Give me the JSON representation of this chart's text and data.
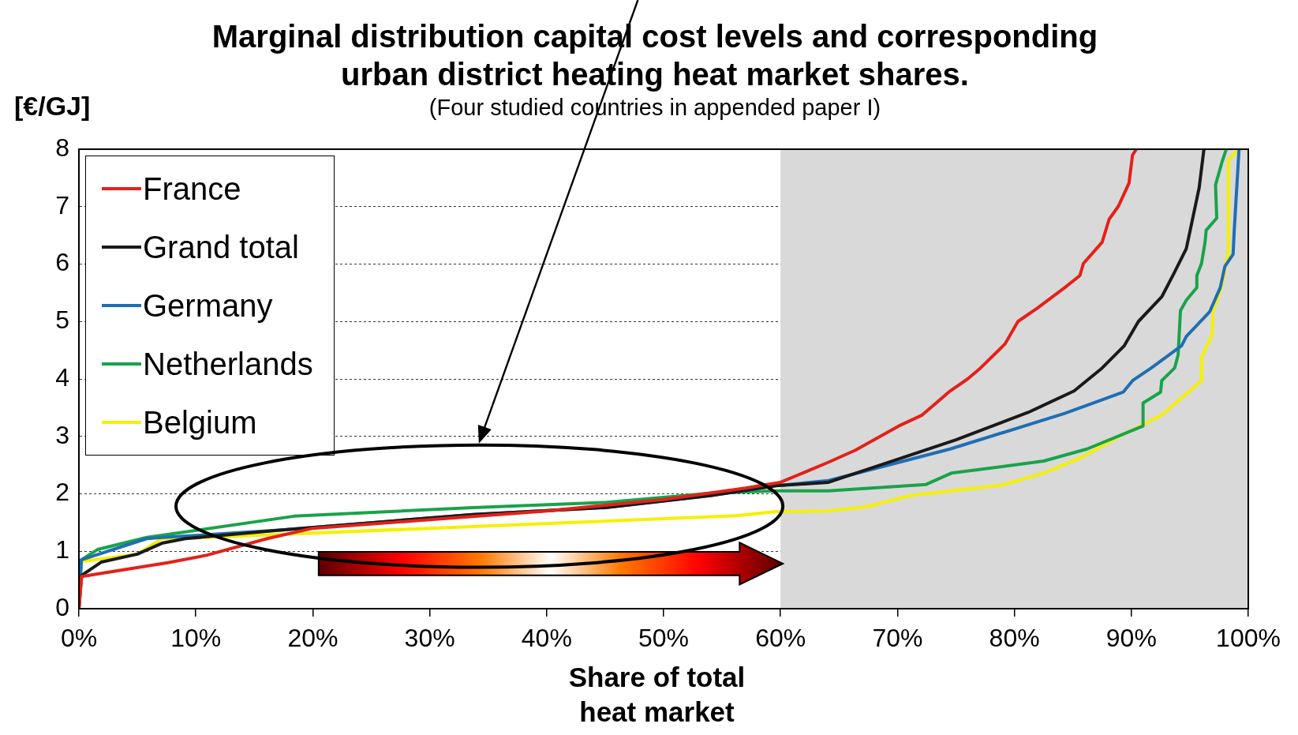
{
  "chart_data": {
    "type": "line",
    "title": "Marginal distribution capital cost levels and corresponding\nurban district heating heat market shares.",
    "subtitle": "(Four studied countries in appended paper I)",
    "ylabel": "[€/GJ]",
    "xlabel": "Share of total\nheat market",
    "xlim": [
      0,
      100
    ],
    "xticks": [
      {
        "value": 0,
        "label": "0%"
      },
      {
        "value": 10,
        "label": "10%"
      },
      {
        "value": 20,
        "label": "20%"
      },
      {
        "value": 30,
        "label": "30%"
      },
      {
        "value": 40,
        "label": "40%"
      },
      {
        "value": 50,
        "label": "50%"
      },
      {
        "value": 60,
        "label": "60%"
      },
      {
        "value": 70,
        "label": "70%"
      },
      {
        "value": 80,
        "label": "80%"
      },
      {
        "value": 90,
        "label": "90%"
      },
      {
        "value": 100,
        "label": "100%"
      }
    ],
    "ylim": [
      0,
      8
    ],
    "yticks": [
      0,
      1,
      2,
      3,
      4,
      5,
      6,
      7,
      8
    ],
    "grid": "y",
    "legend": "top left",
    "marker": "none",
    "line_style": "solid",
    "bands": [
      {
        "axis": "x",
        "from": 60,
        "to": 100,
        "color": "#d9d9d9"
      }
    ],
    "series": [
      {
        "name": "France",
        "color": "#e32119",
        "x": [
          0,
          0.23,
          7.6,
          10.9,
          16.1,
          20,
          30,
          40,
          50,
          57,
          60,
          64.1,
          66.4,
          70.1,
          72.1,
          74.5,
          76.0,
          77.1,
          79.2,
          80.3,
          82.0,
          84.3,
          85.6,
          85.9,
          87.5,
          88.1,
          88.9,
          89.8,
          90.1,
          90.4
        ],
        "values": [
          0,
          0.56,
          0.8,
          0.93,
          1.22,
          1.4,
          1.55,
          1.7,
          1.9,
          2.1,
          2.2,
          2.55,
          2.76,
          3.18,
          3.37,
          3.79,
          4.0,
          4.19,
          4.61,
          5.0,
          5.24,
          5.59,
          5.8,
          6.01,
          6.38,
          6.78,
          7.01,
          7.41,
          7.9,
          7.99
        ]
      },
      {
        "name": "Grand total",
        "color": "#1a1a1a",
        "x": [
          0,
          0.23,
          1.9,
          5.0,
          7.1,
          9.1,
          17.4,
          33.7,
          45,
          54,
          59.6,
          64.1,
          70.3,
          75.0,
          81.2,
          85.1,
          87.5,
          89.4,
          90.6,
          92.6,
          93.7,
          94.7,
          95.2,
          95.8,
          96.2
        ],
        "values": [
          0,
          0.58,
          0.81,
          0.95,
          1.14,
          1.22,
          1.37,
          1.64,
          1.76,
          1.97,
          2.14,
          2.2,
          2.62,
          2.94,
          3.42,
          3.79,
          4.19,
          4.58,
          5.0,
          5.43,
          5.86,
          6.27,
          6.75,
          7.33,
          7.99
        ]
      },
      {
        "name": "Germany",
        "color": "#1f6eb4",
        "x": [
          0,
          0.2,
          5.8,
          7.1,
          17.4,
          33.7,
          45,
          54,
          59.6,
          64.1,
          74.5,
          84.3,
          89.3,
          90.1,
          91.7,
          94.3,
          94.7,
          96.7,
          97.6,
          98.0,
          98.7,
          98.8,
          99.2
        ],
        "values": [
          0,
          0.85,
          1.22,
          1.24,
          1.37,
          1.64,
          1.76,
          1.97,
          2.14,
          2.23,
          2.78,
          3.4,
          3.77,
          3.97,
          4.19,
          4.58,
          4.74,
          5.17,
          5.59,
          5.96,
          6.17,
          6.59,
          7.97
        ]
      },
      {
        "name": "Netherlands",
        "color": "#19a34a",
        "x": [
          0,
          0.2,
          1.6,
          5.8,
          18.4,
          33.7,
          45,
          54,
          59.6,
          64.1,
          72.4,
          74.6,
          82.5,
          86.2,
          91.0,
          91.0,
          92.5,
          92.6,
          93.7,
          94.0,
          94.2,
          94.7,
          95.6,
          95.6,
          96.0,
          96.3,
          96.4,
          97.3,
          97.2,
          97.8,
          98.1
        ],
        "values": [
          0,
          0.85,
          1.03,
          1.24,
          1.61,
          1.76,
          1.85,
          2.01,
          2.05,
          2.05,
          2.16,
          2.36,
          2.57,
          2.78,
          3.18,
          3.58,
          3.77,
          3.97,
          4.19,
          4.42,
          5.19,
          5.37,
          5.59,
          5.8,
          6.01,
          6.38,
          6.59,
          6.8,
          7.38,
          7.81,
          7.99
        ]
      },
      {
        "name": "Belgium",
        "color": "#f5f000",
        "x": [
          0,
          0.2,
          5.0,
          7.1,
          10.9,
          33.7,
          39.8,
          56.2,
          59.6,
          64.1,
          67.5,
          71.1,
          78.9,
          82.5,
          85.6,
          89.0,
          92.6,
          96.0,
          96.0,
          96.9,
          97.0,
          97.7,
          98.1,
          98.3,
          98.3,
          99.1
        ],
        "values": [
          0,
          0.82,
          0.95,
          1.22,
          1.24,
          1.43,
          1.48,
          1.62,
          1.69,
          1.7,
          1.78,
          1.97,
          2.15,
          2.36,
          2.62,
          3.0,
          3.37,
          3.97,
          4.37,
          4.77,
          5.19,
          5.59,
          6.01,
          6.22,
          7.81,
          7.99
        ]
      }
    ]
  }
}
